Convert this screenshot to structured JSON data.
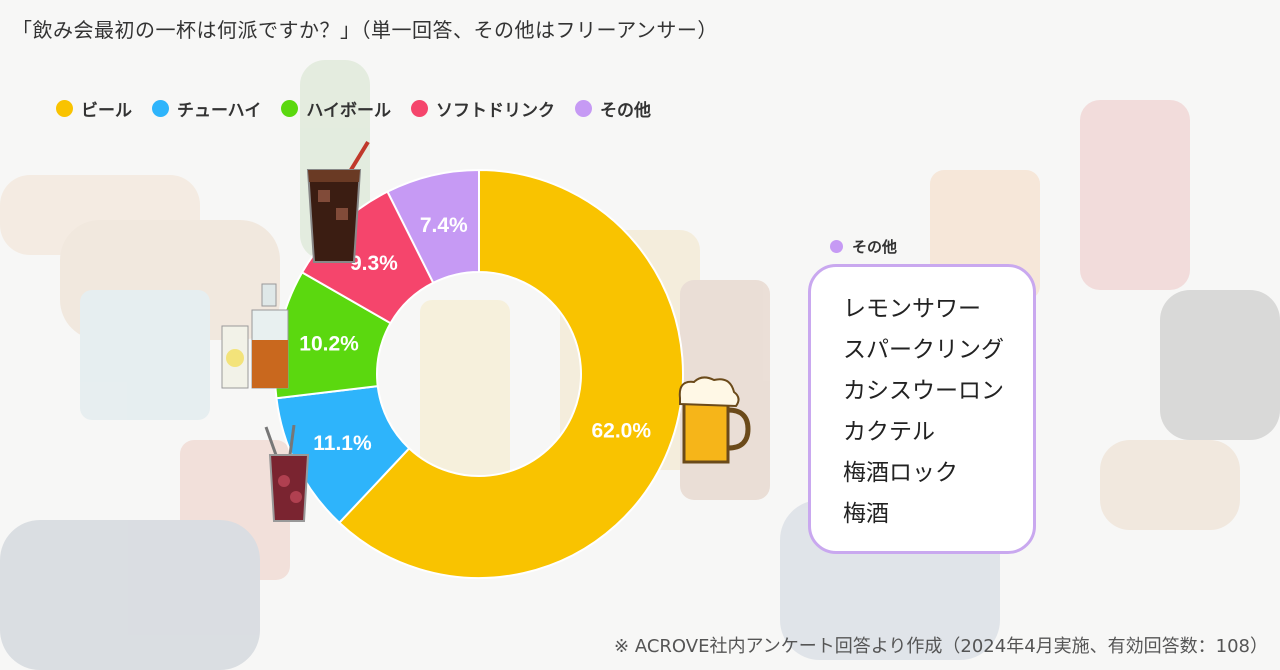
{
  "title": "「飲み会最初の一杯は何派ですか？」（単一回答、その他はフリーアンサー）",
  "chart_data": {
    "type": "pie",
    "title": "「飲み会最初の一杯は何派ですか？」（単一回答、その他はフリーアンサー）",
    "categories": [
      "ビール",
      "チューハイ",
      "ハイボール",
      "ソフトドリンク",
      "その他"
    ],
    "values": [
      62.0,
      11.1,
      10.2,
      9.3,
      7.4
    ],
    "labels": [
      "62.0%",
      "11.1%",
      "10.2%",
      "9.3%",
      "7.4%"
    ],
    "colors": [
      "#f9c300",
      "#2eb4fb",
      "#5bd80f",
      "#f5456c",
      "#c69af4"
    ],
    "legend_position": "top-left",
    "donut": true
  },
  "other_box": {
    "legend_label": "その他",
    "items": [
      "レモンサワー",
      "スパークリング",
      "カシスウーロン",
      "カクテル",
      "梅酒ロック",
      "梅酒"
    ]
  },
  "footnote": "※ ACROVE社内アンケート回答より作成（2024年4月実施、有効回答数：108）",
  "icons": [
    "cola-glass-icon",
    "whisky-bottle-icon",
    "cocktail-glass-icon",
    "beer-mug-icon"
  ]
}
